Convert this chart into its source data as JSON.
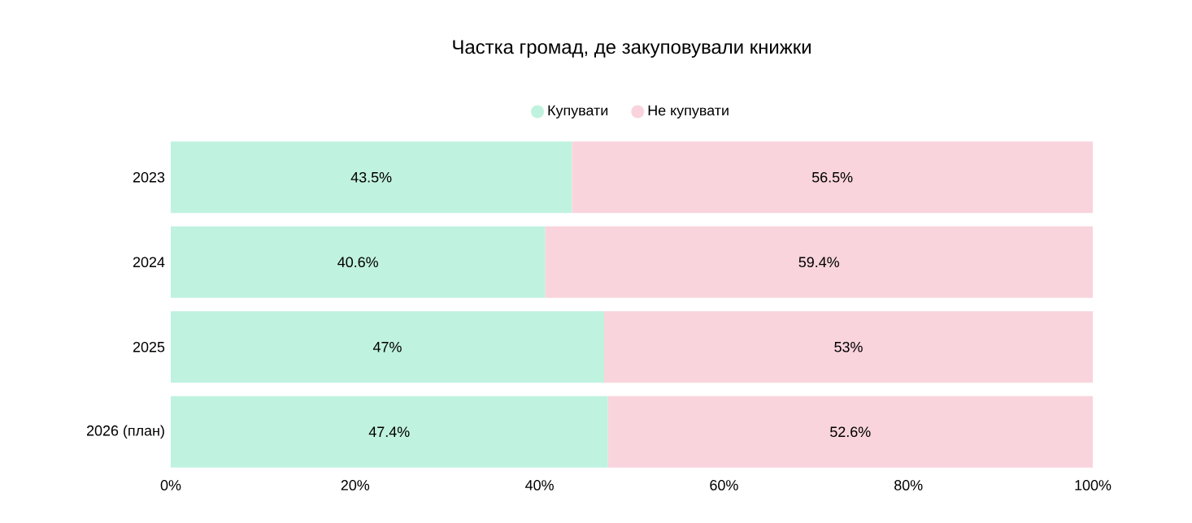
{
  "chart_data": {
    "type": "bar",
    "orientation": "horizontal",
    "stacked": true,
    "title": "Частка громад, де закуповували книжки",
    "categories": [
      "2023",
      "2024",
      "2025",
      "2026 (план)"
    ],
    "series": [
      {
        "name": "Купувати",
        "color": "#c0f2e0",
        "values": [
          43.5,
          40.6,
          47,
          47.4
        ],
        "value_labels": [
          "43.5%",
          "40.6%",
          "47%",
          "47.4%"
        ]
      },
      {
        "name": "Не купувати",
        "color": "#f9d4dc",
        "values": [
          56.5,
          59.4,
          53,
          52.6
        ],
        "value_labels": [
          "56.5%",
          "59.4%",
          "53%",
          "52.6%"
        ]
      }
    ],
    "xlim": [
      0,
      100
    ],
    "xticks": [
      {
        "value": 0,
        "label": "0%"
      },
      {
        "value": 20,
        "label": "20%"
      },
      {
        "value": 40,
        "label": "40%"
      },
      {
        "value": 60,
        "label": "60%"
      },
      {
        "value": 80,
        "label": "80%"
      },
      {
        "value": 100,
        "label": "100%"
      }
    ],
    "legend": "top",
    "grid": false
  }
}
